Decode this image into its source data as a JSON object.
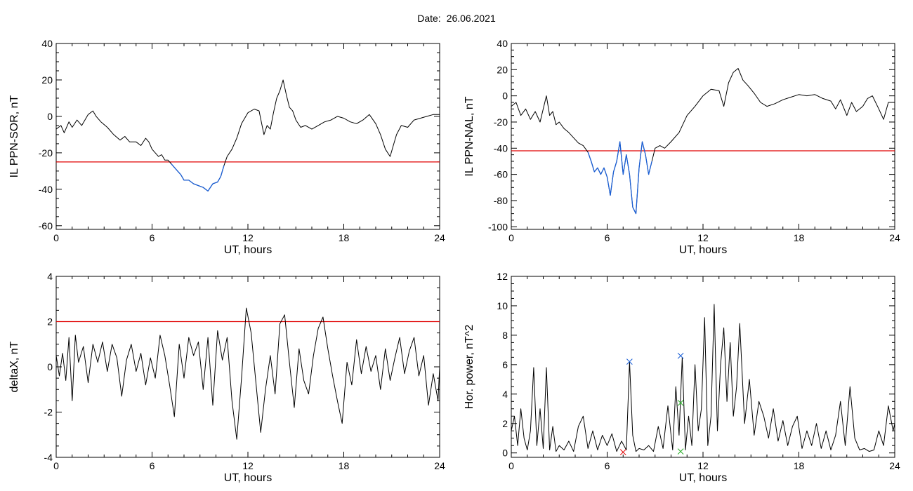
{
  "figure": {
    "date_label": "Date:",
    "date_value": "26.06.2021"
  },
  "chart_data": [
    {
      "type": "line",
      "ylabel": "IL PPN-SOR, nT",
      "xlabel": "UT, hours",
      "xlim": [
        0,
        24
      ],
      "ylim": [
        -62,
        40
      ],
      "xticks": [
        0,
        6,
        12,
        18,
        24
      ],
      "yticks": [
        -60,
        -40,
        -20,
        0,
        20,
        40
      ],
      "threshold": -25,
      "colors": {
        "line": "#000000",
        "highlight": "#1a5fd6",
        "threshold": "#e00000"
      },
      "series": [
        {
          "x": [
            0,
            0.3,
            0.5,
            0.8,
            1,
            1.3,
            1.6,
            2,
            2.3,
            2.5,
            2.8,
            3.2,
            3.6,
            4,
            4.3,
            4.6,
            5,
            5.3,
            5.6,
            5.8,
            6,
            6.2,
            6.4,
            6.6,
            6.8,
            7,
            7.2,
            7.4,
            7.6,
            7.8,
            8,
            8.3,
            8.6,
            8.9,
            9.2,
            9.5,
            9.8,
            10.1,
            10.3,
            10.5,
            10.7,
            11,
            11.3,
            11.6,
            12,
            12.4,
            12.7,
            13,
            13.2,
            13.4,
            13.6,
            13.8,
            14,
            14.2,
            14.4,
            14.6,
            14.8,
            15,
            15.3,
            15.6,
            16,
            16.4,
            16.8,
            17.2,
            17.6,
            18,
            18.4,
            18.8,
            19.2,
            19.6,
            20,
            20.3,
            20.6,
            20.9,
            21.1,
            21.3,
            21.6,
            22,
            22.4,
            22.8,
            23.2,
            23.6,
            24
          ],
          "y": [
            -7,
            -5,
            -9,
            -3,
            -6,
            -2,
            -5,
            1,
            3,
            0,
            -3,
            -6,
            -10,
            -13,
            -11,
            -14,
            -14,
            -16,
            -12,
            -14,
            -18,
            -20,
            -22,
            -21,
            -24,
            -24,
            -26,
            -28,
            -30,
            -32,
            -35,
            -35,
            -37,
            -38,
            -39,
            -41,
            -37,
            -36,
            -33,
            -27,
            -22,
            -18,
            -12,
            -4,
            2,
            4,
            3,
            -10,
            -5,
            -7,
            2,
            10,
            14,
            20,
            12,
            5,
            3,
            -2,
            -6,
            -5,
            -7,
            -5,
            -3,
            -2,
            0,
            -1,
            -3,
            -4,
            -2,
            1,
            -4,
            -10,
            -18,
            -22,
            -16,
            -10,
            -5,
            -6,
            -2,
            -1,
            0,
            1,
            1
          ]
        }
      ],
      "highlight_x": [
        7.2,
        10.5
      ]
    },
    {
      "type": "line",
      "ylabel": "IL PPN-NAL, nT",
      "xlabel": "UT, hours",
      "xlim": [
        0,
        24
      ],
      "ylim": [
        -102,
        40
      ],
      "xticks": [
        0,
        6,
        12,
        18,
        24
      ],
      "yticks": [
        -100,
        -80,
        -60,
        -40,
        -20,
        0,
        20,
        40
      ],
      "threshold": -42,
      "colors": {
        "line": "#000000",
        "highlight": "#1a5fd6",
        "threshold": "#e00000"
      },
      "series": [
        {
          "x": [
            0,
            0.3,
            0.6,
            0.9,
            1.2,
            1.5,
            1.8,
            2,
            2.2,
            2.4,
            2.6,
            2.8,
            3,
            3.3,
            3.6,
            3.9,
            4.2,
            4.5,
            4.8,
            5,
            5.2,
            5.4,
            5.6,
            5.8,
            6,
            6.2,
            6.4,
            6.6,
            6.8,
            7,
            7.2,
            7.4,
            7.6,
            7.8,
            8,
            8.2,
            8.4,
            8.6,
            8.8,
            9,
            9.3,
            9.6,
            10,
            10.5,
            11,
            11.5,
            12,
            12.5,
            13,
            13.3,
            13.6,
            13.9,
            14.2,
            14.5,
            14.8,
            15.2,
            15.6,
            16,
            16.5,
            17,
            17.5,
            18,
            18.5,
            19,
            19.5,
            20,
            20.3,
            20.6,
            21,
            21.3,
            21.6,
            22,
            22.3,
            22.6,
            23,
            23.3,
            23.6,
            24
          ],
          "y": [
            -8,
            -5,
            -15,
            -10,
            -18,
            -12,
            -20,
            -10,
            0,
            -15,
            -12,
            -22,
            -20,
            -25,
            -28,
            -32,
            -36,
            -38,
            -43,
            -50,
            -58,
            -55,
            -60,
            -55,
            -62,
            -76,
            -58,
            -50,
            -35,
            -60,
            -45,
            -60,
            -85,
            -90,
            -55,
            -35,
            -45,
            -60,
            -50,
            -40,
            -38,
            -40,
            -35,
            -28,
            -15,
            -8,
            0,
            5,
            4,
            -8,
            10,
            18,
            21,
            12,
            8,
            2,
            -5,
            -8,
            -6,
            -3,
            -1,
            1,
            0,
            1,
            -2,
            -4,
            -10,
            -3,
            -15,
            -5,
            -12,
            -8,
            -2,
            0,
            -10,
            -18,
            -5,
            -5
          ]
        }
      ],
      "highlight_x": [
        4.8,
        8.8
      ]
    },
    {
      "type": "line",
      "ylabel": "deltaX, nT",
      "xlabel": "UT, hours",
      "xlim": [
        0,
        24
      ],
      "ylim": [
        -4,
        4
      ],
      "xticks": [
        0,
        6,
        12,
        18,
        24
      ],
      "yticks": [
        -4,
        -2,
        0,
        2,
        4
      ],
      "threshold": 2,
      "colors": {
        "line": "#000000",
        "threshold": "#e00000"
      },
      "series": [
        {
          "x": [
            0,
            0.2,
            0.4,
            0.6,
            0.8,
            1,
            1.2,
            1.4,
            1.7,
            2,
            2.3,
            2.6,
            2.9,
            3.2,
            3.5,
            3.8,
            4.1,
            4.4,
            4.7,
            5,
            5.3,
            5.6,
            5.9,
            6.2,
            6.5,
            6.8,
            7.1,
            7.4,
            7.7,
            8,
            8.3,
            8.6,
            8.9,
            9.2,
            9.5,
            9.8,
            10.1,
            10.4,
            10.7,
            11,
            11.3,
            11.6,
            11.9,
            12.2,
            12.5,
            12.8,
            13.1,
            13.4,
            13.7,
            14,
            14.3,
            14.6,
            14.9,
            15.2,
            15.5,
            15.8,
            16.1,
            16.4,
            16.7,
            17,
            17.3,
            17.6,
            17.9,
            18.2,
            18.5,
            18.8,
            19.1,
            19.4,
            19.7,
            20,
            20.3,
            20.6,
            20.9,
            21.2,
            21.5,
            21.8,
            22.1,
            22.4,
            22.7,
            23,
            23.3,
            23.6,
            23.9,
            24
          ],
          "y": [
            0.5,
            -0.4,
            0.6,
            -0.6,
            1.3,
            -1.5,
            1.4,
            0.2,
            0.9,
            -0.7,
            1.0,
            0.2,
            1.1,
            -0.2,
            1.0,
            0.4,
            -1.3,
            0.3,
            1.0,
            -0.2,
            0.6,
            -0.8,
            0.4,
            -0.5,
            1.4,
            0.5,
            -0.8,
            -2.2,
            1.0,
            -0.5,
            1.3,
            0.5,
            1.1,
            -1.0,
            1.3,
            -1.7,
            1.6,
            0.3,
            1.3,
            -1.5,
            -3.2,
            -0.5,
            2.6,
            1.5,
            -0.7,
            -2.9,
            -1.0,
            0.5,
            -1.2,
            1.9,
            2.3,
            0.2,
            -1.8,
            0.8,
            -0.6,
            -1.2,
            0.5,
            1.7,
            2.2,
            0.8,
            -0.4,
            -1.5,
            -2.5,
            0.2,
            -0.8,
            1.2,
            -0.3,
            0.9,
            -0.2,
            0.5,
            -1.0,
            0.8,
            -0.6,
            0.4,
            1.3,
            -0.3,
            0.7,
            1.3,
            -0.4,
            0.5,
            -1.7,
            -0.3,
            -1.5,
            0.0
          ]
        }
      ]
    },
    {
      "type": "line",
      "ylabel": "Hor. power, nT^2",
      "xlabel": "UT, hours",
      "xlim": [
        0,
        24
      ],
      "ylim": [
        -0.3,
        12
      ],
      "xticks": [
        0,
        6,
        12,
        18,
        24
      ],
      "yticks": [
        0,
        2,
        4,
        6,
        8,
        10,
        12
      ],
      "colors": {
        "line": "#000000",
        "marker_blue": "#1a5fd6",
        "marker_green": "#2bb02b",
        "marker_red": "#e00000"
      },
      "series": [
        {
          "x": [
            0,
            0.2,
            0.4,
            0.6,
            0.8,
            1,
            1.2,
            1.4,
            1.6,
            1.8,
            2,
            2.2,
            2.4,
            2.6,
            2.8,
            3,
            3.3,
            3.6,
            3.9,
            4.2,
            4.5,
            4.8,
            5.1,
            5.4,
            5.7,
            6,
            6.3,
            6.6,
            6.9,
            7.2,
            7.4,
            7.6,
            7.8,
            8,
            8.3,
            8.6,
            8.9,
            9.2,
            9.5,
            9.8,
            10.1,
            10.3,
            10.5,
            10.7,
            10.9,
            11.1,
            11.3,
            11.5,
            11.7,
            11.9,
            12.1,
            12.3,
            12.5,
            12.7,
            12.9,
            13.1,
            13.3,
            13.5,
            13.7,
            13.9,
            14.1,
            14.3,
            14.6,
            14.9,
            15.2,
            15.5,
            15.8,
            16.1,
            16.4,
            16.7,
            17,
            17.3,
            17.6,
            17.9,
            18.2,
            18.5,
            18.8,
            19.1,
            19.4,
            19.7,
            20,
            20.3,
            20.6,
            20.9,
            21.2,
            21.5,
            21.8,
            22.1,
            22.4,
            22.7,
            23,
            23.3,
            23.6,
            23.9,
            24
          ],
          "y": [
            1.5,
            2.5,
            0.5,
            3.0,
            1.0,
            0.2,
            1.5,
            5.8,
            0.5,
            3.0,
            0.3,
            5.8,
            0.2,
            1.8,
            0.1,
            0.5,
            0.2,
            0.8,
            0.1,
            1.8,
            2.5,
            0.3,
            1.5,
            0.2,
            1.2,
            0.5,
            1.3,
            0.1,
            0.8,
            0.2,
            6.2,
            1.2,
            0.1,
            0.3,
            0.2,
            0.5,
            0.1,
            1.8,
            0.3,
            3.2,
            0.2,
            4.5,
            1.2,
            6.5,
            0.2,
            2.5,
            0.5,
            6.0,
            1.5,
            3.0,
            9.2,
            0.5,
            2.5,
            10.1,
            1.5,
            6.0,
            8.5,
            3.5,
            7.5,
            2.5,
            4.5,
            8.8,
            2.0,
            5.0,
            1.2,
            3.5,
            2.5,
            1.0,
            3.0,
            0.8,
            2.2,
            0.5,
            1.8,
            2.5,
            0.3,
            1.5,
            0.5,
            2.0,
            0.3,
            1.5,
            0.2,
            1.2,
            3.5,
            0.5,
            4.5,
            1.0,
            0.2,
            0.3,
            0.1,
            0.2,
            1.5,
            0.5,
            3.2,
            1.5,
            2.0
          ]
        }
      ],
      "markers": [
        {
          "x": 7.4,
          "y": 6.2,
          "color": "blue"
        },
        {
          "x": 10.6,
          "y": 6.6,
          "color": "blue"
        },
        {
          "x": 10.6,
          "y": 3.4,
          "color": "green"
        },
        {
          "x": 10.6,
          "y": 0.1,
          "color": "green"
        },
        {
          "x": 7.0,
          "y": 0.05,
          "color": "red"
        }
      ]
    }
  ]
}
